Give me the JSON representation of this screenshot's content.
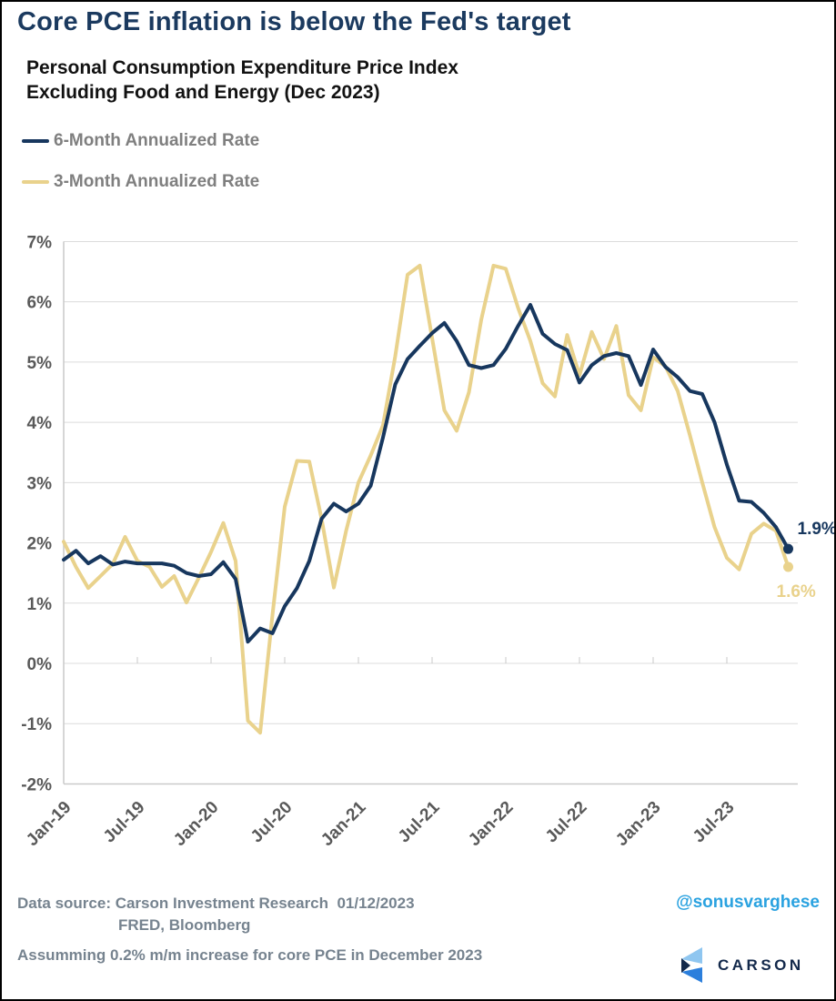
{
  "title": "Core PCE inflation is below the Fed's target",
  "subtitle_line1": "Personal Consumption Expenditure Price Index",
  "subtitle_line2": "Excluding Food and Energy (Dec 2023)",
  "legend": [
    {
      "label": "6-Month Annualized Rate",
      "color": "#17375e"
    },
    {
      "label": "3-Month Annualized Rate",
      "color": "#e9d28c"
    }
  ],
  "colors": {
    "navy": "#17375e",
    "tan": "#e9d28c",
    "axis_text": "#595959",
    "gridline": "#dcdcdc",
    "axis_line": "#c9c9c9",
    "footer_gray": "#76838f",
    "twitter_blue": "#2aa2e0",
    "logo_light_blue": "#8fc6f0",
    "logo_bright_blue": "#2c7fdc",
    "logo_dark_navy": "#13294b"
  },
  "chart_data": {
    "type": "line",
    "title": "Personal Consumption Expenditure Price Index Excluding Food and Energy (Dec 2023)",
    "xlabel": "",
    "ylabel": "",
    "ylim": [
      -2,
      7
    ],
    "grid": true,
    "legend_position": "top-left",
    "y_ticks": [
      "7%",
      "6%",
      "5%",
      "4%",
      "3%",
      "2%",
      "1%",
      "0%",
      "-1%",
      "-2%"
    ],
    "x_tick_labels": [
      "Jan-19",
      "Jul-19",
      "Jan-20",
      "Jul-20",
      "Jan-21",
      "Jul-21",
      "Jan-22",
      "Jul-22",
      "Jan-23",
      "Jul-23"
    ],
    "x": [
      "Jan-19",
      "Feb-19",
      "Mar-19",
      "Apr-19",
      "May-19",
      "Jun-19",
      "Jul-19",
      "Aug-19",
      "Sep-19",
      "Oct-19",
      "Nov-19",
      "Dec-19",
      "Jan-20",
      "Feb-20",
      "Mar-20",
      "Apr-20",
      "May-20",
      "Jun-20",
      "Jul-20",
      "Aug-20",
      "Sep-20",
      "Oct-20",
      "Nov-20",
      "Dec-20",
      "Jan-21",
      "Feb-21",
      "Mar-21",
      "Apr-21",
      "May-21",
      "Jun-21",
      "Jul-21",
      "Aug-21",
      "Sep-21",
      "Oct-21",
      "Nov-21",
      "Dec-21",
      "Jan-22",
      "Feb-22",
      "Mar-22",
      "Apr-22",
      "May-22",
      "Jun-22",
      "Jul-22",
      "Aug-22",
      "Sep-22",
      "Oct-22",
      "Nov-22",
      "Dec-22",
      "Jan-23",
      "Feb-23",
      "Mar-23",
      "Apr-23",
      "May-23",
      "Jun-23",
      "Jul-23",
      "Aug-23",
      "Sep-23",
      "Oct-23",
      "Nov-23",
      "Dec-23"
    ],
    "series": [
      {
        "name": "6-Month Annualized Rate",
        "color": "#17375e",
        "end_label": "1.9%",
        "values": [
          1.72,
          1.87,
          1.66,
          1.78,
          1.64,
          1.69,
          1.66,
          1.66,
          1.66,
          1.62,
          1.5,
          1.45,
          1.48,
          1.68,
          1.4,
          0.36,
          0.58,
          0.5,
          0.95,
          1.25,
          1.7,
          2.4,
          2.65,
          2.52,
          2.65,
          2.95,
          3.75,
          4.63,
          5.05,
          5.27,
          5.48,
          5.65,
          5.35,
          4.95,
          4.9,
          4.95,
          5.22,
          5.6,
          5.95,
          5.47,
          5.3,
          5.2,
          4.66,
          4.95,
          5.1,
          5.15,
          5.1,
          4.62,
          5.21,
          4.92,
          4.75,
          4.52,
          4.47,
          4.0,
          3.3,
          2.7,
          2.68,
          2.5,
          2.26,
          1.9
        ]
      },
      {
        "name": "3-Month Annualized Rate",
        "color": "#e9d28c",
        "end_label": "1.6%",
        "values": [
          2.02,
          1.6,
          1.25,
          1.45,
          1.65,
          2.1,
          1.7,
          1.6,
          1.27,
          1.45,
          1.01,
          1.42,
          1.85,
          2.33,
          1.7,
          -0.95,
          -1.15,
          0.8,
          2.6,
          3.36,
          3.35,
          2.4,
          1.26,
          2.2,
          3.0,
          3.45,
          3.95,
          5.1,
          6.45,
          6.6,
          5.4,
          4.2,
          3.86,
          4.5,
          5.7,
          6.6,
          6.55,
          5.9,
          5.35,
          4.65,
          4.43,
          5.45,
          4.78,
          5.5,
          5.05,
          5.6,
          4.45,
          4.2,
          5.08,
          4.93,
          4.52,
          3.78,
          3.0,
          2.26,
          1.75,
          1.56,
          2.15,
          2.32,
          2.2,
          1.6
        ]
      }
    ]
  },
  "footer": {
    "data_source_line1": "Data source: Carson Investment Research  01/12/2023",
    "data_source_line2": "FRED, Bloomberg",
    "assumption_note": "Assumming 0.2% m/m increase for core PCE in December 2023",
    "twitter_handle": "@sonusvarghese",
    "logo_text": "CARSON"
  }
}
